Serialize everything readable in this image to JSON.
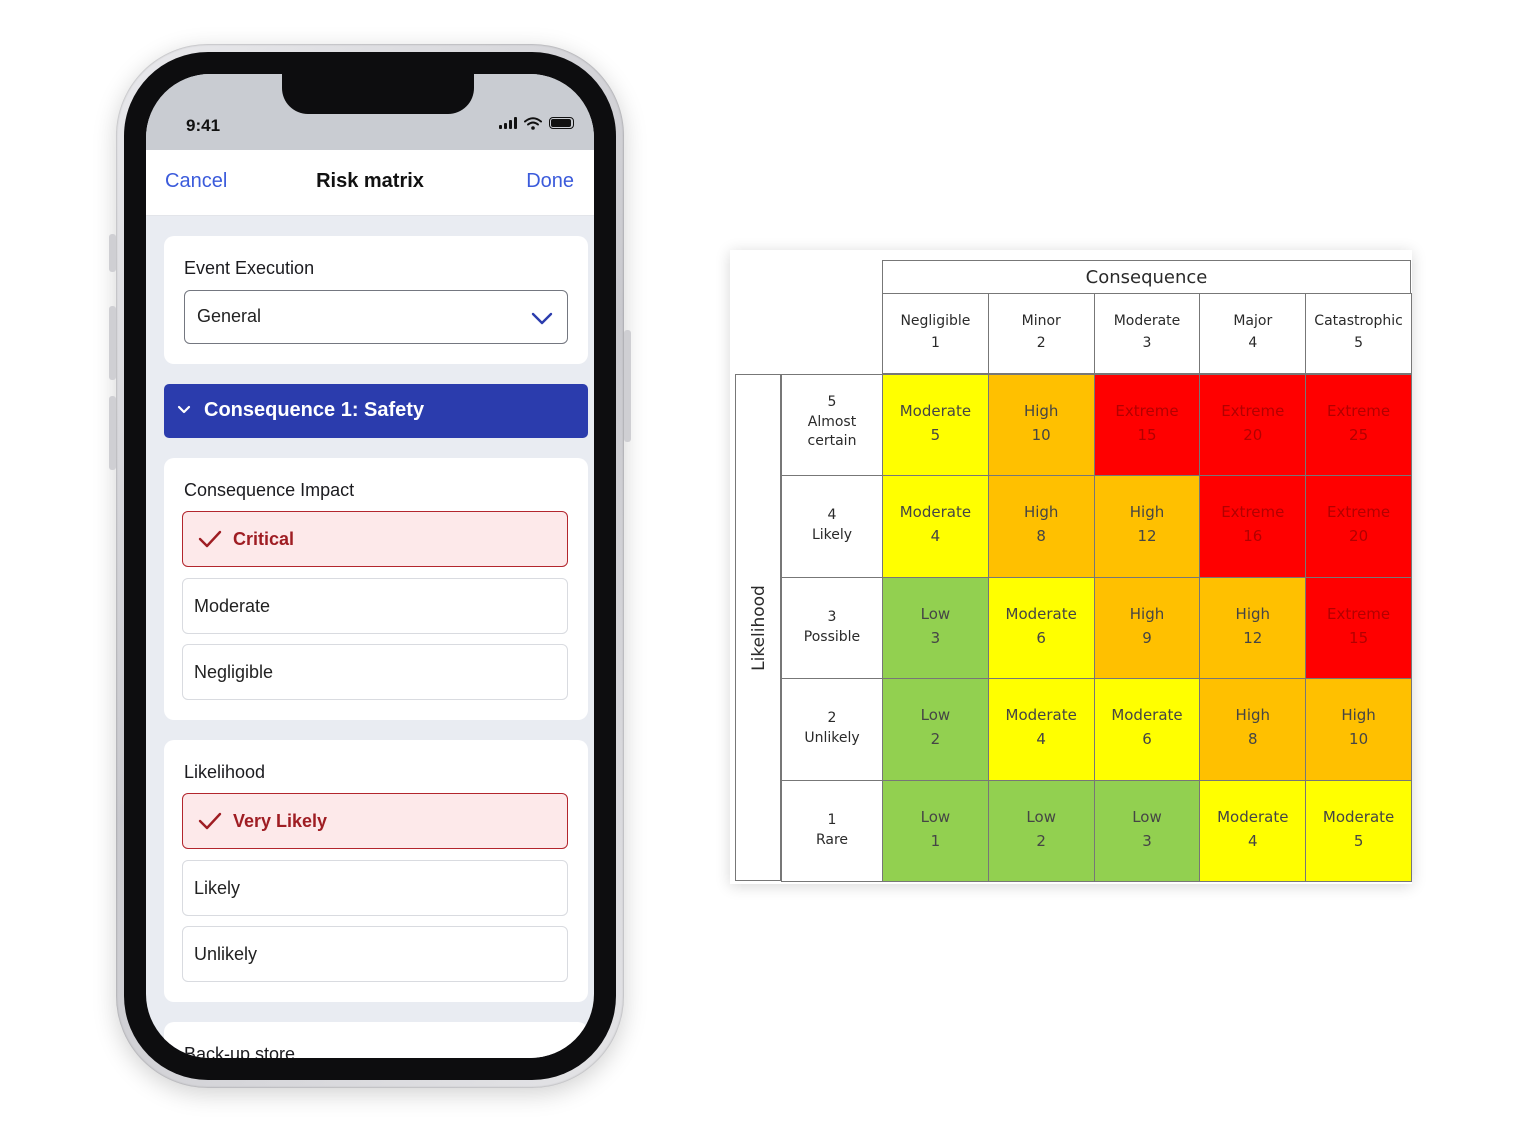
{
  "phone": {
    "status_bar": {
      "time": "9:41"
    },
    "nav": {
      "cancel": "Cancel",
      "title": "Risk matrix",
      "done": "Done"
    },
    "event_execution": {
      "label": "Event Execution",
      "value": "General"
    },
    "section": {
      "title": "Consequence 1: Safety",
      "expanded": true
    },
    "consequence_impact": {
      "label": "Consequence Impact",
      "options": [
        {
          "label": "Critical",
          "selected": true
        },
        {
          "label": "Moderate",
          "selected": false
        },
        {
          "label": "Negligible",
          "selected": false
        }
      ]
    },
    "likelihood": {
      "label": "Likelihood",
      "options": [
        {
          "label": "Very Likely",
          "selected": true
        },
        {
          "label": "Likely",
          "selected": false
        },
        {
          "label": "Unlikely",
          "selected": false
        }
      ]
    },
    "backup": {
      "label": "Back-up store"
    }
  },
  "colors": {
    "accent": "#3b5bdb",
    "section_bar": "#2b3cad",
    "selected_border": "#b3262d",
    "selected_bg": "#fde9ea",
    "low": "#92d050",
    "moderate": "#ffff00",
    "high": "#ffc000",
    "extreme": "#ff0000"
  },
  "matrix": {
    "consequence_label": "Consequence",
    "likelihood_label": "Likelihood",
    "columns": [
      {
        "name": "Negligible",
        "num": "1"
      },
      {
        "name": "Minor",
        "num": "2"
      },
      {
        "name": "Moderate",
        "num": "3"
      },
      {
        "name": "Major",
        "num": "4"
      },
      {
        "name": "Catastrophic",
        "num": "5"
      }
    ],
    "rows": [
      {
        "num": "5",
        "name": "Almost certain",
        "cells": [
          {
            "level": "Moderate",
            "score": "5"
          },
          {
            "level": "High",
            "score": "10"
          },
          {
            "level": "Extreme",
            "score": "15"
          },
          {
            "level": "Extreme",
            "score": "20"
          },
          {
            "level": "Extreme",
            "score": "25"
          }
        ]
      },
      {
        "num": "4",
        "name": "Likely",
        "cells": [
          {
            "level": "Moderate",
            "score": "4"
          },
          {
            "level": "High",
            "score": "8"
          },
          {
            "level": "High",
            "score": "12"
          },
          {
            "level": "Extreme",
            "score": "16"
          },
          {
            "level": "Extreme",
            "score": "20"
          }
        ]
      },
      {
        "num": "3",
        "name": "Possible",
        "cells": [
          {
            "level": "Low",
            "score": "3"
          },
          {
            "level": "Moderate",
            "score": "6"
          },
          {
            "level": "High",
            "score": "9"
          },
          {
            "level": "High",
            "score": "12"
          },
          {
            "level": "Extreme",
            "score": "15"
          }
        ]
      },
      {
        "num": "2",
        "name": "Unlikely",
        "cells": [
          {
            "level": "Low",
            "score": "2"
          },
          {
            "level": "Moderate",
            "score": "4"
          },
          {
            "level": "Moderate",
            "score": "6"
          },
          {
            "level": "High",
            "score": "8"
          },
          {
            "level": "High",
            "score": "10"
          }
        ]
      },
      {
        "num": "1",
        "name": "Rare",
        "cells": [
          {
            "level": "Low",
            "score": "1"
          },
          {
            "level": "Low",
            "score": "2"
          },
          {
            "level": "Low",
            "score": "3"
          },
          {
            "level": "Moderate",
            "score": "4"
          },
          {
            "level": "Moderate",
            "score": "5"
          }
        ]
      }
    ]
  }
}
